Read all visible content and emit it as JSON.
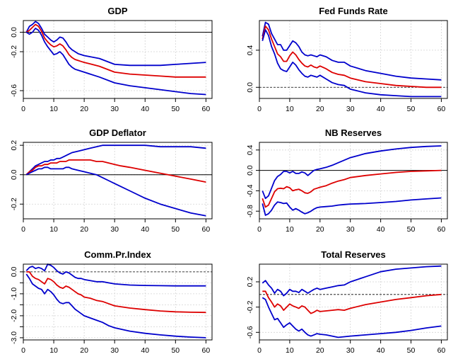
{
  "colors": {
    "band": "#0000cc",
    "median": "#dd0000",
    "zero": "#000000",
    "grid": "#d3d3d3"
  },
  "chart_data": [
    {
      "type": "line",
      "title": "GDP",
      "xlim": [
        0,
        62
      ],
      "ylim": [
        -0.68,
        0.12
      ],
      "xticks": [
        0,
        10,
        20,
        30,
        40,
        50,
        60
      ],
      "yticks": [
        0.0,
        -0.2,
        -0.6
      ],
      "ytick_labels": [
        "0.0",
        "-0.2",
        "-0.6"
      ],
      "zero_line": "solid",
      "grid": true,
      "x": [
        1,
        2,
        3,
        4,
        5,
        6,
        7,
        8,
        9,
        10,
        11,
        12,
        13,
        14,
        15,
        16,
        17,
        18,
        19,
        20,
        25,
        30,
        35,
        40,
        45,
        50,
        55,
        60
      ],
      "series": [
        {
          "role": "upper",
          "values": [
            0.0,
            0.06,
            0.08,
            0.11,
            0.09,
            0.04,
            -0.02,
            -0.05,
            -0.08,
            -0.1,
            -0.08,
            -0.05,
            -0.06,
            -0.1,
            -0.15,
            -0.18,
            -0.2,
            -0.22,
            -0.23,
            -0.24,
            -0.27,
            -0.33,
            -0.34,
            -0.34,
            -0.34,
            -0.33,
            -0.32,
            -0.31
          ]
        },
        {
          "role": "median",
          "values": [
            0.0,
            0.02,
            0.05,
            0.08,
            0.06,
            0.01,
            -0.06,
            -0.1,
            -0.13,
            -0.15,
            -0.14,
            -0.12,
            -0.14,
            -0.18,
            -0.23,
            -0.26,
            -0.28,
            -0.29,
            -0.3,
            -0.31,
            -0.35,
            -0.41,
            -0.43,
            -0.44,
            -0.45,
            -0.46,
            -0.46,
            -0.46
          ]
        },
        {
          "role": "lower",
          "values": [
            0.0,
            -0.02,
            0.0,
            0.04,
            0.02,
            -0.03,
            -0.1,
            -0.15,
            -0.19,
            -0.23,
            -0.22,
            -0.2,
            -0.23,
            -0.28,
            -0.33,
            -0.36,
            -0.38,
            -0.39,
            -0.4,
            -0.41,
            -0.46,
            -0.52,
            -0.55,
            -0.57,
            -0.59,
            -0.61,
            -0.63,
            -0.64
          ]
        }
      ]
    },
    {
      "type": "line",
      "title": "Fed Funds Rate",
      "xlim": [
        0,
        62
      ],
      "ylim": [
        -0.12,
        0.72
      ],
      "xticks": [
        0,
        10,
        20,
        30,
        40,
        50,
        60
      ],
      "yticks": [
        0.0,
        0.4
      ],
      "ytick_labels": [
        "0.0",
        "0.4"
      ],
      "zero_line": "dashed",
      "grid": true,
      "x": [
        1,
        2,
        3,
        4,
        5,
        6,
        7,
        8,
        9,
        10,
        11,
        12,
        13,
        14,
        15,
        16,
        17,
        18,
        19,
        20,
        22,
        24,
        26,
        28,
        30,
        35,
        40,
        45,
        50,
        55,
        60
      ],
      "series": [
        {
          "role": "upper",
          "values": [
            0.55,
            0.7,
            0.68,
            0.58,
            0.52,
            0.46,
            0.46,
            0.4,
            0.4,
            0.45,
            0.5,
            0.48,
            0.44,
            0.38,
            0.35,
            0.34,
            0.35,
            0.34,
            0.33,
            0.35,
            0.33,
            0.29,
            0.27,
            0.27,
            0.23,
            0.18,
            0.15,
            0.12,
            0.1,
            0.09,
            0.08
          ]
        },
        {
          "role": "median",
          "values": [
            0.52,
            0.66,
            0.62,
            0.52,
            0.44,
            0.36,
            0.33,
            0.28,
            0.28,
            0.34,
            0.38,
            0.35,
            0.3,
            0.26,
            0.23,
            0.22,
            0.24,
            0.22,
            0.21,
            0.23,
            0.2,
            0.16,
            0.14,
            0.13,
            0.1,
            0.06,
            0.04,
            0.02,
            0.01,
            0.0,
            0.0
          ]
        },
        {
          "role": "lower",
          "values": [
            0.5,
            0.62,
            0.56,
            0.44,
            0.36,
            0.26,
            0.2,
            0.18,
            0.17,
            0.22,
            0.27,
            0.24,
            0.19,
            0.15,
            0.12,
            0.11,
            0.13,
            0.12,
            0.11,
            0.13,
            0.09,
            0.05,
            0.03,
            0.02,
            -0.02,
            -0.06,
            -0.08,
            -0.09,
            -0.1,
            -0.1,
            -0.1
          ]
        }
      ]
    },
    {
      "type": "line",
      "title": "GDP Deflator",
      "xlim": [
        0,
        62
      ],
      "ylim": [
        -0.3,
        0.22
      ],
      "xticks": [
        0,
        10,
        20,
        30,
        40,
        50,
        60
      ],
      "yticks": [
        0.2,
        0.0,
        -0.2
      ],
      "ytick_labels": [
        "0.2",
        "0.0",
        "-0.2"
      ],
      "zero_line": "solid",
      "grid": true,
      "x": [
        1,
        2,
        3,
        4,
        5,
        6,
        7,
        8,
        9,
        10,
        11,
        12,
        13,
        14,
        15,
        16,
        18,
        20,
        22,
        24,
        26,
        28,
        30,
        32,
        35,
        40,
        45,
        50,
        55,
        60
      ],
      "series": [
        {
          "role": "upper",
          "values": [
            0.0,
            0.02,
            0.04,
            0.06,
            0.07,
            0.08,
            0.09,
            0.09,
            0.1,
            0.1,
            0.11,
            0.11,
            0.12,
            0.13,
            0.14,
            0.15,
            0.16,
            0.17,
            0.18,
            0.19,
            0.2,
            0.2,
            0.2,
            0.2,
            0.2,
            0.2,
            0.19,
            0.19,
            0.19,
            0.18
          ]
        },
        {
          "role": "median",
          "values": [
            0.0,
            0.02,
            0.03,
            0.05,
            0.06,
            0.06,
            0.07,
            0.07,
            0.08,
            0.08,
            0.08,
            0.09,
            0.09,
            0.09,
            0.1,
            0.1,
            0.1,
            0.1,
            0.1,
            0.09,
            0.09,
            0.08,
            0.07,
            0.06,
            0.05,
            0.03,
            0.01,
            -0.01,
            -0.03,
            -0.05
          ]
        },
        {
          "role": "lower",
          "values": [
            0.0,
            0.01,
            0.02,
            0.03,
            0.04,
            0.04,
            0.05,
            0.05,
            0.04,
            0.04,
            0.04,
            0.04,
            0.04,
            0.05,
            0.05,
            0.04,
            0.03,
            0.02,
            0.01,
            0.0,
            -0.02,
            -0.04,
            -0.06,
            -0.08,
            -0.11,
            -0.16,
            -0.2,
            -0.23,
            -0.26,
            -0.28
          ]
        }
      ]
    },
    {
      "type": "line",
      "title": "NB Reserves",
      "xlim": [
        0,
        62
      ],
      "ylim": [
        -0.95,
        0.55
      ],
      "xticks": [
        0,
        10,
        20,
        30,
        40,
        50,
        60
      ],
      "yticks": [
        0.4,
        0.0,
        -0.4,
        -0.8
      ],
      "ytick_labels": [
        "0.4",
        "0.0",
        "-0.4",
        "-0.8"
      ],
      "zero_line": "solid",
      "grid": true,
      "x": [
        1,
        2,
        3,
        4,
        5,
        6,
        7,
        8,
        9,
        10,
        11,
        12,
        13,
        14,
        15,
        16,
        17,
        18,
        19,
        20,
        22,
        24,
        26,
        28,
        30,
        35,
        40,
        45,
        50,
        55,
        60
      ],
      "series": [
        {
          "role": "upper",
          "values": [
            -0.4,
            -0.55,
            -0.5,
            -0.35,
            -0.2,
            -0.12,
            -0.08,
            -0.02,
            -0.02,
            -0.05,
            -0.02,
            -0.06,
            -0.06,
            -0.03,
            -0.05,
            -0.1,
            -0.05,
            0.0,
            0.02,
            0.03,
            0.06,
            0.1,
            0.15,
            0.2,
            0.25,
            0.33,
            0.38,
            0.42,
            0.45,
            0.47,
            0.48
          ]
        },
        {
          "role": "median",
          "values": [
            -0.55,
            -0.72,
            -0.68,
            -0.55,
            -0.42,
            -0.36,
            -0.35,
            -0.36,
            -0.32,
            -0.34,
            -0.4,
            -0.38,
            -0.37,
            -0.4,
            -0.44,
            -0.45,
            -0.42,
            -0.37,
            -0.35,
            -0.33,
            -0.3,
            -0.25,
            -0.21,
            -0.18,
            -0.14,
            -0.1,
            -0.07,
            -0.04,
            -0.02,
            -0.01,
            0.0
          ]
        },
        {
          "role": "lower",
          "values": [
            -0.65,
            -0.88,
            -0.85,
            -0.78,
            -0.68,
            -0.62,
            -0.63,
            -0.65,
            -0.64,
            -0.72,
            -0.78,
            -0.75,
            -0.78,
            -0.82,
            -0.85,
            -0.83,
            -0.8,
            -0.76,
            -0.73,
            -0.72,
            -0.71,
            -0.7,
            -0.68,
            -0.67,
            -0.66,
            -0.65,
            -0.63,
            -0.61,
            -0.58,
            -0.56,
            -0.54
          ]
        }
      ]
    },
    {
      "type": "line",
      "title": "Comm.Pr.Index",
      "xlim": [
        0,
        62
      ],
      "ylim": [
        -3.1,
        0.35
      ],
      "xticks": [
        0,
        10,
        20,
        30,
        40,
        50,
        60
      ],
      "yticks": [
        0.0,
        -1.0,
        -2.0,
        -3.0
      ],
      "ytick_labels": [
        "0.0",
        "-1.0",
        "-2.0",
        "-3.0"
      ],
      "extra_ytick_values": [
        -0.5,
        -1.5,
        -2.5
      ],
      "zero_line": "dashed",
      "grid": true,
      "x": [
        1,
        2,
        3,
        4,
        5,
        6,
        7,
        8,
        9,
        10,
        11,
        12,
        13,
        14,
        15,
        16,
        17,
        18,
        19,
        20,
        22,
        24,
        26,
        28,
        30,
        35,
        40,
        45,
        50,
        55,
        60
      ],
      "series": [
        {
          "role": "upper",
          "values": [
            0.05,
            0.2,
            0.25,
            0.15,
            0.2,
            0.15,
            0.05,
            0.35,
            0.3,
            0.2,
            0.05,
            -0.05,
            -0.1,
            0.0,
            -0.05,
            -0.15,
            -0.25,
            -0.3,
            -0.3,
            -0.35,
            -0.4,
            -0.45,
            -0.45,
            -0.5,
            -0.55,
            -0.6,
            -0.62,
            -0.63,
            -0.64,
            -0.64,
            -0.64
          ]
        },
        {
          "role": "median",
          "values": [
            0.0,
            0.0,
            -0.2,
            -0.3,
            -0.35,
            -0.45,
            -0.55,
            -0.3,
            -0.35,
            -0.45,
            -0.6,
            -0.7,
            -0.75,
            -0.65,
            -0.7,
            -0.8,
            -0.9,
            -1.0,
            -1.05,
            -1.15,
            -1.2,
            -1.3,
            -1.35,
            -1.45,
            -1.55,
            -1.65,
            -1.72,
            -1.78,
            -1.82,
            -1.84,
            -1.85
          ]
        },
        {
          "role": "lower",
          "values": [
            -0.1,
            -0.3,
            -0.55,
            -0.65,
            -0.75,
            -0.8,
            -1.0,
            -0.8,
            -0.9,
            -1.05,
            -1.25,
            -1.4,
            -1.45,
            -1.4,
            -1.4,
            -1.55,
            -1.7,
            -1.8,
            -1.9,
            -2.0,
            -2.1,
            -2.2,
            -2.3,
            -2.45,
            -2.55,
            -2.7,
            -2.8,
            -2.87,
            -2.93,
            -2.97,
            -3.0
          ]
        }
      ]
    },
    {
      "type": "line",
      "title": "Total Reserves",
      "xlim": [
        0,
        62
      ],
      "ylim": [
        -0.72,
        0.48
      ],
      "xticks": [
        0,
        10,
        20,
        30,
        40,
        50,
        60
      ],
      "yticks": [
        0.2,
        -0.2,
        -0.6
      ],
      "ytick_labels": [
        "0.2",
        "-0.2",
        "-0.6"
      ],
      "zero_line": "dashed",
      "grid": true,
      "x": [
        1,
        2,
        3,
        4,
        5,
        6,
        7,
        8,
        9,
        10,
        11,
        12,
        13,
        14,
        15,
        16,
        17,
        18,
        19,
        20,
        22,
        24,
        26,
        28,
        30,
        35,
        40,
        45,
        50,
        55,
        60
      ],
      "series": [
        {
          "role": "upper",
          "values": [
            0.18,
            0.22,
            0.15,
            0.1,
            0.02,
            0.08,
            0.05,
            -0.02,
            0.02,
            0.08,
            0.05,
            0.05,
            0.03,
            0.08,
            0.05,
            0.02,
            0.05,
            0.08,
            0.1,
            0.08,
            0.1,
            0.12,
            0.14,
            0.15,
            0.2,
            0.28,
            0.36,
            0.4,
            0.42,
            0.44,
            0.45
          ]
        },
        {
          "role": "median",
          "values": [
            0.05,
            0.05,
            -0.05,
            -0.12,
            -0.2,
            -0.15,
            -0.18,
            -0.25,
            -0.2,
            -0.15,
            -0.18,
            -0.2,
            -0.22,
            -0.18,
            -0.2,
            -0.25,
            -0.3,
            -0.28,
            -0.25,
            -0.27,
            -0.26,
            -0.25,
            -0.24,
            -0.25,
            -0.22,
            -0.16,
            -0.12,
            -0.08,
            -0.05,
            -0.02,
            0.0
          ]
        },
        {
          "role": "lower",
          "values": [
            -0.05,
            -0.08,
            -0.2,
            -0.3,
            -0.4,
            -0.38,
            -0.45,
            -0.52,
            -0.48,
            -0.45,
            -0.5,
            -0.55,
            -0.58,
            -0.55,
            -0.6,
            -0.64,
            -0.66,
            -0.64,
            -0.62,
            -0.63,
            -0.64,
            -0.66,
            -0.68,
            -0.67,
            -0.66,
            -0.64,
            -0.62,
            -0.6,
            -0.57,
            -0.53,
            -0.5
          ]
        }
      ]
    }
  ]
}
